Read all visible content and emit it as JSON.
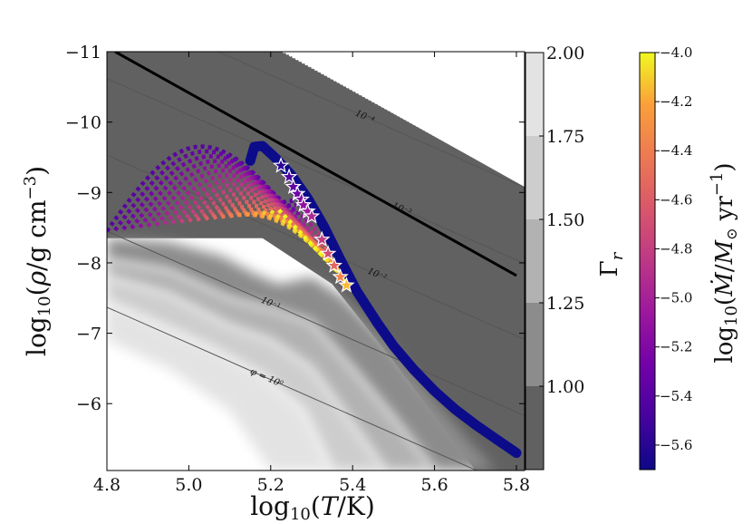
{
  "chart_data": {
    "type": "line",
    "xlabel": "log10(T/K)",
    "ylabel": "log10(ρ/g cm−3)",
    "xlim": [
      4.8,
      5.82
    ],
    "ylim": [
      -5.05,
      -11
    ],
    "x_ticks": [
      "4.8",
      "5.0",
      "5.2",
      "5.4",
      "5.6",
      "5.8"
    ],
    "y_ticks": [
      "−11",
      "−10",
      "−9",
      "−8",
      "−7",
      "−6"
    ],
    "gamma_colorbar": {
      "label": "Γr",
      "levels": [
        0.75,
        1.0,
        1.25,
        1.5,
        1.75,
        2.0
      ],
      "ticks": [
        "1.00",
        "1.25",
        "1.50",
        "1.75",
        "2.00"
      ],
      "colors": [
        "#616161",
        "#8c8c8c",
        "#b2b2b2",
        "#cdcdcd",
        "#e3e3e3",
        "#f2f2f2"
      ]
    },
    "mdot_colorbar": {
      "label": "log10(Ṁ/M⊙ yr−1)",
      "range": [
        -5.7,
        -4.0
      ],
      "ticks": [
        "−4.0",
        "−4.2",
        "−4.4",
        "−4.6",
        "−4.8",
        "−5.0",
        "−5.2",
        "−5.4",
        "−5.6"
      ],
      "colormap": "plasma"
    },
    "isolines": [
      {
        "label": "φ = 10⁰",
        "points": [
          [
            4.8,
            -7.37
          ],
          [
            5.82,
            -4.75
          ]
        ]
      },
      {
        "label": "10⁻¹",
        "points": [
          [
            4.8,
            -8.45
          ],
          [
            5.82,
            -5.83
          ]
        ]
      },
      {
        "label": "10⁻²",
        "points": [
          [
            4.8,
            -9.53
          ],
          [
            5.82,
            -6.91
          ]
        ]
      },
      {
        "label": "10⁻³",
        "points": [
          [
            4.8,
            -10.62
          ],
          [
            5.82,
            -7.99
          ]
        ]
      },
      {
        "label": "10⁻⁴",
        "points": [
          [
            4.8,
            -11.7
          ],
          [
            5.82,
            -9.07
          ]
        ]
      }
    ],
    "thick_line": {
      "points": [
        [
          4.82,
          -11
        ],
        [
          5.8,
          -7.82
        ]
      ]
    },
    "main_track": {
      "color": "#0c0c8a",
      "points": [
        [
          5.15,
          -9.45
        ],
        [
          5.16,
          -9.65
        ],
        [
          5.18,
          -9.66
        ],
        [
          5.21,
          -9.5
        ],
        [
          5.25,
          -9.25
        ],
        [
          5.29,
          -8.92
        ],
        [
          5.33,
          -8.52
        ],
        [
          5.37,
          -8.05
        ],
        [
          5.41,
          -7.6
        ],
        [
          5.46,
          -7.15
        ],
        [
          5.5,
          -6.82
        ],
        [
          5.55,
          -6.48
        ],
        [
          5.6,
          -6.18
        ],
        [
          5.65,
          -5.92
        ],
        [
          5.7,
          -5.7
        ],
        [
          5.75,
          -5.5
        ],
        [
          5.8,
          -5.3
        ]
      ]
    },
    "dotted_tracks": {
      "count": 22,
      "x_start": [
        4.8,
        5.2
      ],
      "y_start_range": [
        -8.45,
        -8.75
      ],
      "end_x_range": [
        5.27,
        5.4
      ],
      "end_y_range": [
        -8.9,
        -7.65
      ],
      "peak_y_range": [
        -8.75,
        -9.55
      ],
      "mdot_range": [
        -4.0,
        -5.4
      ]
    },
    "stars": [
      {
        "x": 5.225,
        "y": -9.38,
        "mdot": -5.58
      },
      {
        "x": 5.245,
        "y": -9.22,
        "mdot": -5.45
      },
      {
        "x": 5.255,
        "y": -9.08,
        "mdot": -5.35
      },
      {
        "x": 5.265,
        "y": -8.98,
        "mdot": -5.3
      },
      {
        "x": 5.275,
        "y": -8.9,
        "mdot": -5.2
      },
      {
        "x": 5.28,
        "y": -8.82,
        "mdot": -5.12
      },
      {
        "x": 5.29,
        "y": -8.73,
        "mdot": -5.05
      },
      {
        "x": 5.3,
        "y": -8.66,
        "mdot": -4.95
      },
      {
        "x": 5.325,
        "y": -8.33,
        "mdot": -4.82
      },
      {
        "x": 5.34,
        "y": -8.13,
        "mdot": -4.7
      },
      {
        "x": 5.355,
        "y": -7.96,
        "mdot": -4.55
      },
      {
        "x": 5.37,
        "y": -7.8,
        "mdot": -4.35
      },
      {
        "x": 5.385,
        "y": -7.68,
        "mdot": -4.15
      }
    ]
  }
}
